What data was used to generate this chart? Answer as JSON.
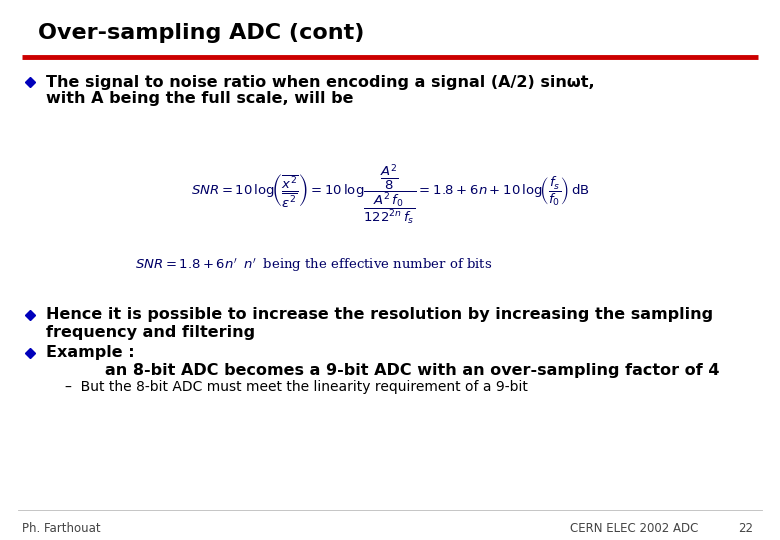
{
  "title": "Over-sampling ADC (cont)",
  "title_color": "#000000",
  "title_fontsize": 16,
  "red_line_color": "#CC0000",
  "bullet_color": "#0000BB",
  "bullet1_line1": "The signal to noise ratio when encoding a signal (A/2) sinωt,",
  "bullet1_line2": "with A being the full scale, will be",
  "bullet2_line1": "Hence it is possible to increase the resolution by increasing the sampling",
  "bullet2_line2": "frequency and filtering",
  "bullet3_line": "Example :",
  "sub1": "an 8-bit ADC becomes a 9-bit ADC with an over-sampling factor of 4",
  "sub2": "But the 8-bit ADC must meet the linearity requirement of a 9-bit",
  "footer_left": "Ph. Farthouat",
  "footer_center": "CERN ELEC 2002 ADC",
  "footer_page": "22",
  "bg_color": "#FFFFFF",
  "text_color": "#000000",
  "formula_color": "#000066",
  "body_fontsize": 11.5,
  "small_fontsize": 10,
  "footer_fontsize": 8.5,
  "fig_width": 7.8,
  "fig_height": 5.4,
  "dpi": 100
}
